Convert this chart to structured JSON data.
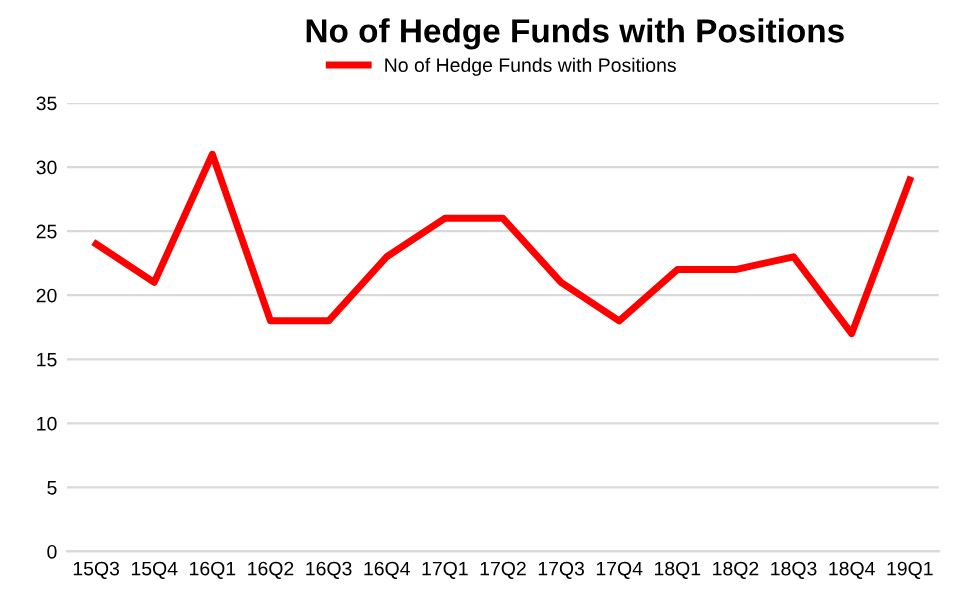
{
  "chart_data": {
    "type": "line",
    "title": "No of Hedge Funds with Positions",
    "categories": [
      "15Q3",
      "15Q4",
      "16Q1",
      "16Q2",
      "16Q3",
      "16Q4",
      "17Q1",
      "17Q2",
      "17Q3",
      "17Q4",
      "18Q1",
      "18Q2",
      "18Q3",
      "18Q4",
      "19Q1"
    ],
    "series": [
      {
        "name": "No of Hedge Funds with Positions",
        "color": "#ff0000",
        "values": [
          24,
          21,
          31,
          18,
          18,
          23,
          26,
          26,
          21,
          18,
          22,
          22,
          23,
          17,
          29
        ]
      }
    ],
    "ylim": [
      0,
      35
    ],
    "yticks": [
      0,
      5,
      10,
      15,
      20,
      25,
      30,
      35
    ],
    "grid": "y",
    "legend": "top",
    "marker": "none",
    "line_style": "solid"
  }
}
